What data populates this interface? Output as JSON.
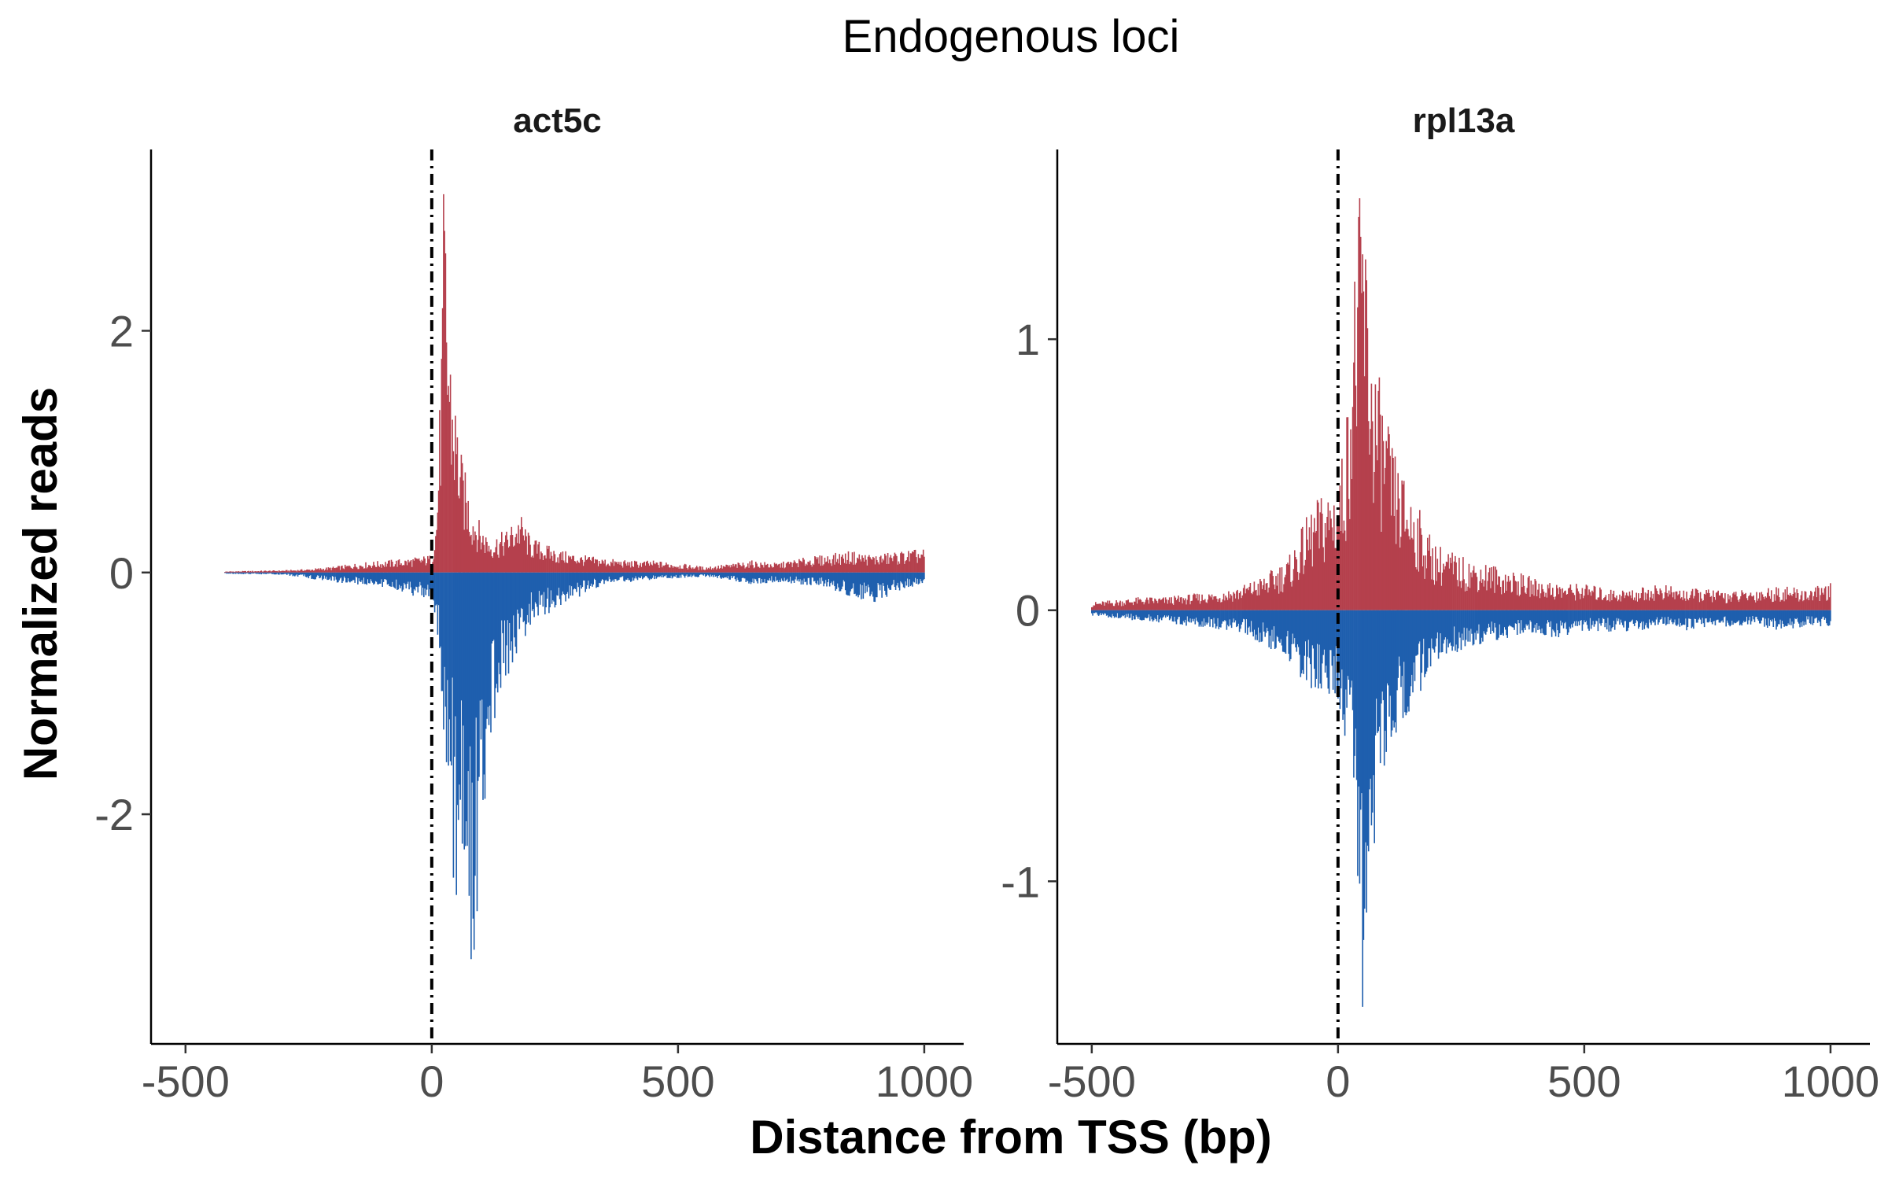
{
  "chart_data": {
    "type": "bar",
    "title": "Endogenous loci",
    "xlabel": "Distance from TSS (bp)",
    "ylabel": "Normalized reads",
    "colors": {
      "positive": "#b5404d",
      "negative": "#1f5fae",
      "tss_line": "#000000"
    },
    "tss_position": 0,
    "grid": false,
    "legend": "none",
    "panels": [
      {
        "name": "act5c",
        "xlim": [
          -570,
          1080
        ],
        "ylim": [
          -3.9,
          3.5
        ],
        "xticks": [
          -500,
          0,
          500,
          1000
        ],
        "yticks": [
          -2,
          0,
          2
        ],
        "series": [
          {
            "name": "+",
            "x": [
              -420,
              -300,
              -250,
              -200,
              -150,
              -100,
              -50,
              0,
              10,
              20,
              25,
              30,
              40,
              50,
              60,
              70,
              80,
              90,
              100,
              120,
              150,
              180,
              200,
              250,
              300,
              350,
              400,
              450,
              500,
              550,
              600,
              650,
              700,
              750,
              800,
              850,
              900,
              950,
              1000
            ],
            "values": [
              0.01,
              0.02,
              0.03,
              0.05,
              0.08,
              0.1,
              0.12,
              0.15,
              0.5,
              2.0,
              3.45,
              2.6,
              1.8,
              1.4,
              1.0,
              0.8,
              0.6,
              0.5,
              0.4,
              0.3,
              0.35,
              0.5,
              0.3,
              0.2,
              0.15,
              0.12,
              0.1,
              0.1,
              0.08,
              0.05,
              0.07,
              0.1,
              0.08,
              0.12,
              0.15,
              0.18,
              0.15,
              0.18,
              0.2
            ]
          },
          {
            "name": "-",
            "x": [
              -420,
              -300,
              -250,
              -200,
              -150,
              -100,
              -50,
              0,
              10,
              20,
              25,
              30,
              40,
              50,
              60,
              70,
              80,
              90,
              100,
              120,
              150,
              180,
              200,
              250,
              300,
              350,
              400,
              450,
              500,
              550,
              600,
              650,
              700,
              750,
              800,
              850,
              900,
              950,
              1000
            ],
            "values": [
              -0.01,
              -0.02,
              -0.05,
              -0.08,
              -0.1,
              -0.12,
              -0.18,
              -0.25,
              -0.5,
              -1.0,
              -1.5,
              -1.8,
              -2.3,
              -3.1,
              -2.6,
              -3.0,
              -3.3,
              -3.2,
              -2.2,
              -1.4,
              -1.0,
              -0.6,
              -0.45,
              -0.3,
              -0.2,
              -0.1,
              -0.08,
              -0.06,
              -0.05,
              -0.04,
              -0.06,
              -0.1,
              -0.08,
              -0.1,
              -0.12,
              -0.2,
              -0.25,
              -0.15,
              -0.1
            ]
          }
        ]
      },
      {
        "name": "rpl13a",
        "xlim": [
          -570,
          1080
        ],
        "ylim": [
          -1.6,
          1.7
        ],
        "xticks": [
          -500,
          0,
          500,
          1000
        ],
        "yticks": [
          -1,
          0,
          1
        ],
        "series": [
          {
            "name": "+",
            "x": [
              -500,
              -450,
              -400,
              -350,
              -300,
              -250,
              -200,
              -150,
              -100,
              -75,
              -50,
              -25,
              0,
              10,
              20,
              30,
              40,
              50,
              60,
              70,
              80,
              90,
              100,
              120,
              150,
              180,
              200,
              250,
              300,
              350,
              400,
              450,
              500,
              550,
              600,
              650,
              700,
              750,
              800,
              850,
              900,
              950,
              1000
            ],
            "values": [
              0.03,
              0.04,
              0.05,
              0.05,
              0.06,
              0.07,
              0.09,
              0.13,
              0.2,
              0.3,
              0.4,
              0.45,
              0.5,
              0.6,
              0.8,
              1.2,
              1.45,
              1.65,
              1.3,
              1.0,
              0.9,
              0.8,
              0.7,
              0.55,
              0.45,
              0.3,
              0.25,
              0.2,
              0.18,
              0.15,
              0.12,
              0.1,
              0.1,
              0.08,
              0.08,
              0.1,
              0.08,
              0.08,
              0.07,
              0.08,
              0.09,
              0.08,
              0.1
            ]
          },
          {
            "name": "-",
            "x": [
              -500,
              -450,
              -400,
              -350,
              -300,
              -250,
              -200,
              -150,
              -100,
              -75,
              -50,
              -25,
              0,
              10,
              20,
              30,
              40,
              50,
              60,
              70,
              80,
              90,
              100,
              120,
              150,
              180,
              200,
              250,
              300,
              350,
              400,
              450,
              500,
              550,
              600,
              650,
              700,
              750,
              800,
              850,
              900,
              950,
              1000
            ],
            "values": [
              -0.02,
              -0.03,
              -0.04,
              -0.05,
              -0.06,
              -0.07,
              -0.08,
              -0.13,
              -0.2,
              -0.25,
              -0.3,
              -0.32,
              -0.35,
              -0.45,
              -0.6,
              -0.75,
              -1.05,
              -1.5,
              -1.03,
              -0.9,
              -0.8,
              -0.6,
              -0.55,
              -0.45,
              -0.4,
              -0.25,
              -0.2,
              -0.15,
              -0.12,
              -0.1,
              -0.1,
              -0.1,
              -0.08,
              -0.08,
              -0.08,
              -0.06,
              -0.08,
              -0.06,
              -0.06,
              -0.06,
              -0.08,
              -0.06,
              -0.06
            ]
          }
        ]
      }
    ]
  }
}
